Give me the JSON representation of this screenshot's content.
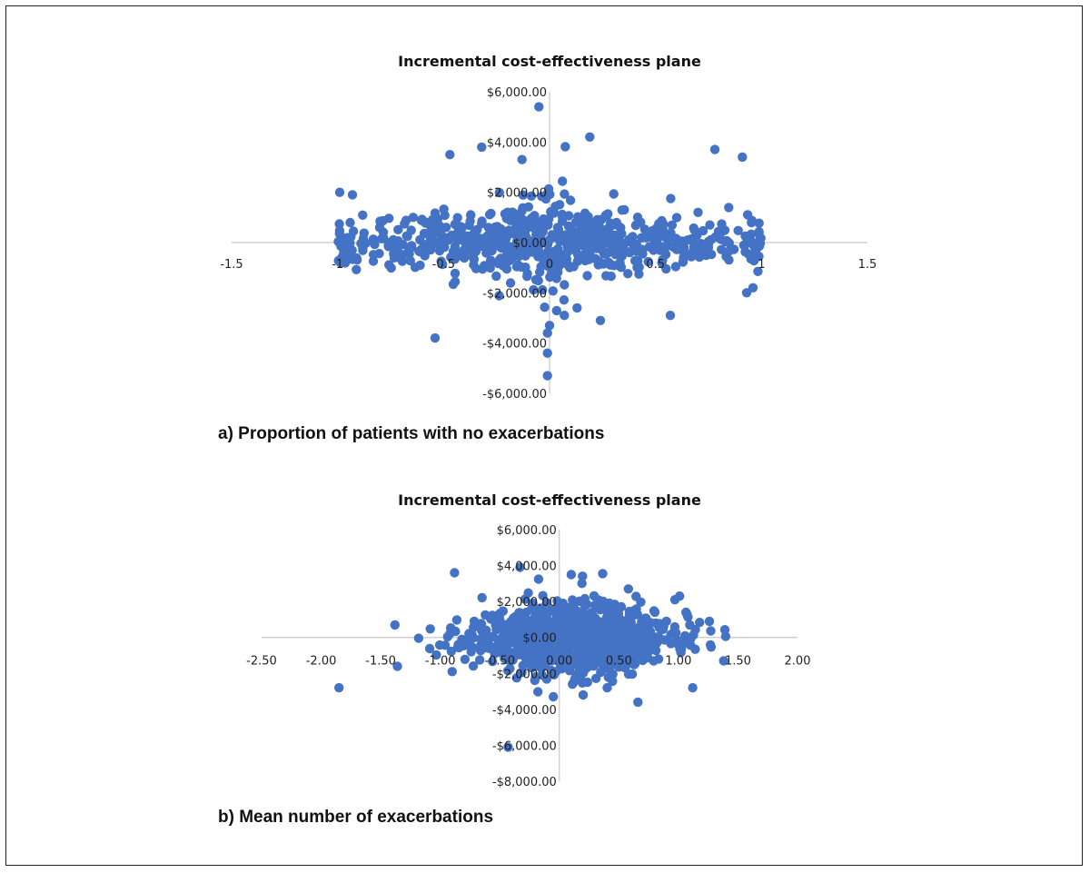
{
  "chart_data": [
    {
      "type": "scatter",
      "title": "Incremental cost-effectiveness plane",
      "caption": "a) Proportion of patients with no exacerbations",
      "xlabel": "",
      "ylabel": "",
      "xlim": [
        -1.5,
        1.5
      ],
      "ylim": [
        -6000,
        6000
      ],
      "x_ticks": [
        -1.5,
        -1,
        -0.5,
        0,
        0.5,
        1,
        1.5
      ],
      "x_tick_labels": [
        "-1.5",
        "-1",
        "-0.5",
        "0",
        "0.5",
        "1",
        "1.5"
      ],
      "y_ticks": [
        -6000,
        -4000,
        -2000,
        0,
        2000,
        4000,
        6000
      ],
      "y_tick_labels": [
        "-$6,000.00",
        "-$4,000.00",
        "-$2,000.00",
        "$0.00",
        "$2,000.00",
        "$4,000.00",
        "$6,000.00"
      ],
      "grid": false,
      "marker_color": "#4472C4",
      "outliers": [
        [
          -0.05,
          5400
        ],
        [
          0.19,
          4200
        ],
        [
          0.78,
          3700
        ],
        [
          0.91,
          3400
        ],
        [
          -0.47,
          3500
        ],
        [
          -0.32,
          3800
        ],
        [
          -0.13,
          3300
        ],
        [
          -0.54,
          -3800
        ],
        [
          0.0,
          -3300
        ],
        [
          -0.01,
          -3600
        ],
        [
          -0.01,
          -4400
        ],
        [
          -0.01,
          -5300
        ],
        [
          0.07,
          -2900
        ],
        [
          0.24,
          -3100
        ],
        [
          0.13,
          -2600
        ],
        [
          0.57,
          -2900
        ],
        [
          0.96,
          -1800
        ],
        [
          0.93,
          -2000
        ],
        [
          -0.99,
          2000
        ],
        [
          -0.93,
          1900
        ]
      ],
      "cloud": {
        "n": 720,
        "x_half_range": 1.0,
        "x_sd": 0.5,
        "y_sd_center": 900,
        "y_sd_edge": 600,
        "seed": 7
      }
    },
    {
      "type": "scatter",
      "title": "Incremental cost-effectiveness plane",
      "caption": "b) Mean number of exacerbations",
      "xlabel": "",
      "ylabel": "",
      "xlim": [
        -2.5,
        2.0
      ],
      "ylim": [
        -8000,
        6000
      ],
      "x_ticks": [
        -2.5,
        -2,
        -1.5,
        -1,
        -0.5,
        0,
        0.5,
        1,
        1.5,
        2
      ],
      "x_tick_labels": [
        "-2.50",
        "-2.00",
        "-1.50",
        "-1.00",
        "-0.50",
        "0.00",
        "0.50",
        "1.00",
        "1.50",
        "2.00"
      ],
      "y_ticks": [
        -8000,
        -6000,
        -4000,
        -2000,
        0,
        2000,
        4000,
        6000
      ],
      "y_tick_labels": [
        "-$8,000.00",
        "-$6,000.00",
        "-$4,000.00",
        "-$2,000.00",
        "$0.00",
        "$2,000.00",
        "$4,000.00",
        "$6,000.00"
      ],
      "grid": false,
      "marker_color": "#4472C4",
      "outliers": [
        [
          -1.85,
          -2800
        ],
        [
          -1.38,
          700
        ],
        [
          -1.36,
          -1600
        ],
        [
          -0.88,
          3600
        ],
        [
          -0.43,
          -6100
        ],
        [
          -0.33,
          3900
        ],
        [
          0.66,
          -3600
        ],
        [
          0.58,
          2700
        ],
        [
          0.97,
          2100
        ],
        [
          1.12,
          -2800
        ],
        [
          1.38,
          -1300
        ],
        [
          1.26,
          900
        ],
        [
          0.2,
          -3200
        ],
        [
          -0.05,
          -3300
        ],
        [
          1.01,
          2300
        ],
        [
          -0.9,
          -1900
        ],
        [
          0.1,
          3500
        ]
      ],
      "cloud": {
        "n": 900,
        "x_center": 0.1,
        "x_sd": 0.42,
        "x_min": -1.3,
        "x_max": 1.4,
        "y_sd": 1150,
        "seed": 11
      }
    }
  ]
}
